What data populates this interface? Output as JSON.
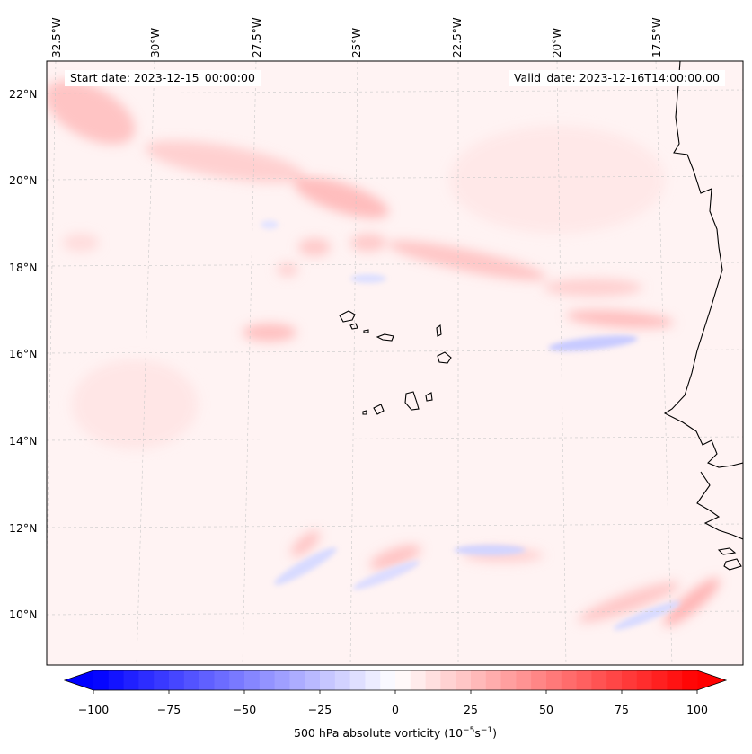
{
  "map": {
    "start_label": "Start date: 2023-12-15_00:00:00",
    "valid_label": "Valid_date: 2023-12-16T14:00:00.00",
    "lon_labels": [
      "32.5°W",
      "30°W",
      "27.5°W",
      "25°W",
      "22.5°W",
      "20°W",
      "17.5°W"
    ],
    "lat_labels": [
      "22°N",
      "20°N",
      "18°N",
      "16°N",
      "14°N",
      "12°N",
      "10°N"
    ],
    "field": "500 hPa absolute vorticity",
    "colors": {
      "negative": "#0000ff",
      "zero": "#ffffff",
      "positive": "#ff0000",
      "coast": "#000000",
      "grid": "#c8c8c8"
    }
  },
  "colorbar": {
    "ticks": [
      "−100",
      "−75",
      "−50",
      "−25",
      "0",
      "25",
      "50",
      "75",
      "100"
    ],
    "range": [
      -100,
      100
    ],
    "label_prefix": "500 hPa absolute vorticity (10",
    "label_exp1": "−5",
    "label_mid": "s",
    "label_exp2": "−1",
    "label_suffix": ")"
  }
}
